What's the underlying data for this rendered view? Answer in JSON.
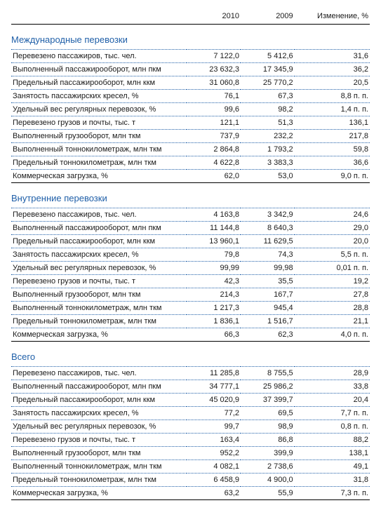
{
  "columns": {
    "label": "",
    "v2010": "2010",
    "v2009": "2009",
    "change": "Изменение, %"
  },
  "sections": [
    {
      "title": "Международные перевозки",
      "rows": [
        {
          "label": "Перевезено пассажиров, тыс. чел.",
          "v2010": "7 122,0",
          "v2009": "5 412,6",
          "change": "31,6"
        },
        {
          "label": "Выполненный пассажирооборот, млн пкм",
          "v2010": "23 632,3",
          "v2009": "17 345,9",
          "change": "36,2"
        },
        {
          "label": "Предельный пассажирооборот, млн ккм",
          "v2010": "31 060,8",
          "v2009": "25 770,2",
          "change": "20,5"
        },
        {
          "label": "Занятость пассажирских кресел, %",
          "v2010": "76,1",
          "v2009": "67,3",
          "change": "8,8 п. п."
        },
        {
          "label": "Удельный вес регулярных перевозок, %",
          "v2010": "99,6",
          "v2009": "98,2",
          "change": "1,4 п. п."
        },
        {
          "label": "Перевезено грузов и почты, тыс. т",
          "v2010": "121,1",
          "v2009": "51,3",
          "change": "136,1"
        },
        {
          "label": "Выполненный грузооборот, млн ткм",
          "v2010": "737,9",
          "v2009": "232,2",
          "change": "217,8"
        },
        {
          "label": "Выполненный тоннокилометраж, млн ткм",
          "v2010": "2 864,8",
          "v2009": "1 793,2",
          "change": "59,8"
        },
        {
          "label": "Предельный тоннокилометраж, млн ткм",
          "v2010": "4 622,8",
          "v2009": "3 383,3",
          "change": "36,6"
        },
        {
          "label": "Коммерческая загрузка, %",
          "v2010": "62,0",
          "v2009": "53,0",
          "change": "9,0 п. п."
        }
      ]
    },
    {
      "title": "Внутренние перевозки",
      "rows": [
        {
          "label": "Перевезено пассажиров, тыс. чел.",
          "v2010": "4 163,8",
          "v2009": "3 342,9",
          "change": "24,6"
        },
        {
          "label": "Выполненный пассажирооборот, млн пкм",
          "v2010": "11 144,8",
          "v2009": "8 640,3",
          "change": "29,0"
        },
        {
          "label": "Предельный пассажирооборот, млн ккм",
          "v2010": "13 960,1",
          "v2009": "11 629,5",
          "change": "20,0"
        },
        {
          "label": "Занятость пассажирских кресел, %",
          "v2010": "79,8",
          "v2009": "74,3",
          "change": "5,5 п. п."
        },
        {
          "label": "Удельный вес регулярных перевозок, %",
          "v2010": "99,99",
          "v2009": "99,98",
          "change": "0,01 п. п."
        },
        {
          "label": "Перевезено грузов и почты, тыс. т",
          "v2010": "42,3",
          "v2009": "35,5",
          "change": "19,2"
        },
        {
          "label": "Выполненный грузооборот, млн ткм",
          "v2010": "214,3",
          "v2009": "167,7",
          "change": "27,8"
        },
        {
          "label": "Выполненный тоннокилометраж, млн ткм",
          "v2010": "1 217,3",
          "v2009": "945,4",
          "change": "28,8"
        },
        {
          "label": "Предельный тоннокилометраж, млн ткм",
          "v2010": "1 836,1",
          "v2009": "1 516,7",
          "change": "21,1"
        },
        {
          "label": "Коммерческая загрузка, %",
          "v2010": "66,3",
          "v2009": "62,3",
          "change": "4,0 п. п."
        }
      ]
    },
    {
      "title": "Всего",
      "rows": [
        {
          "label": "Перевезено пассажиров, тыс. чел.",
          "v2010": "11 285,8",
          "v2009": "8 755,5",
          "change": "28,9"
        },
        {
          "label": "Выполненный пассажирооборот, млн пкм",
          "v2010": "34 777,1",
          "v2009": "25 986,2",
          "change": "33,8"
        },
        {
          "label": "Предельный пассажирооборот, млн ккм",
          "v2010": "45 020,9",
          "v2009": "37 399,7",
          "change": "20,4"
        },
        {
          "label": "Занятость пассажирских кресел, %",
          "v2010": "77,2",
          "v2009": "69,5",
          "change": "7,7 п. п."
        },
        {
          "label": "Удельный вес регулярных перевозок, %",
          "v2010": "99,7",
          "v2009": "98,9",
          "change": "0,8 п. п."
        },
        {
          "label": "Перевезено грузов и почты, тыс. т",
          "v2010": "163,4",
          "v2009": "86,8",
          "change": "88,2"
        },
        {
          "label": "Выполненный грузооборот, млн ткм",
          "v2010": "952,2",
          "v2009": "399,9",
          "change": "138,1"
        },
        {
          "label": "Выполненный тоннокилометраж, млн ткм",
          "v2010": "4 082,1",
          "v2009": "2 738,6",
          "change": "49,1"
        },
        {
          "label": "Предельный тоннокилометраж, млн ткм",
          "v2010": "6 458,9",
          "v2009": "4 900,0",
          "change": "31,8"
        },
        {
          "label": "Коммерческая загрузка, %",
          "v2010": "63,2",
          "v2009": "55,9",
          "change": "7,3 п. п."
        }
      ]
    }
  ]
}
